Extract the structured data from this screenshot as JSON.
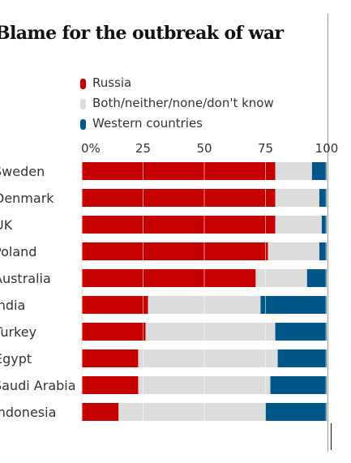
{
  "title": "Blame for the outbreak of war",
  "chart_data": {
    "type": "bar",
    "orientation": "horizontal",
    "stacked": true,
    "title": "Blame for the outbreak of war",
    "categories": [
      "Sweden",
      "Denmark",
      "UK",
      "Poland",
      "Australia",
      "India",
      "Turkey",
      "Egypt",
      "Saudi Arabia",
      "Indonesia"
    ],
    "series": [
      {
        "name": "Russia",
        "color": "#c70000",
        "values": [
          79,
          79,
          79,
          76,
          71,
          27,
          26,
          23,
          23,
          15
        ]
      },
      {
        "name": "Both/neither/none/don't know",
        "color": "#dcdcdc",
        "values": [
          15,
          18,
          19,
          21,
          21,
          46,
          53,
          57,
          54,
          60
        ]
      },
      {
        "name": "Western countries",
        "color": "#005689",
        "values": [
          6,
          3,
          2,
          3,
          8,
          27,
          21,
          20,
          23,
          25
        ]
      }
    ],
    "xlim": [
      0,
      100
    ],
    "xticks": [
      "0%",
      "25",
      "50",
      "75",
      "100"
    ],
    "grid": true,
    "legend_position": "top"
  }
}
